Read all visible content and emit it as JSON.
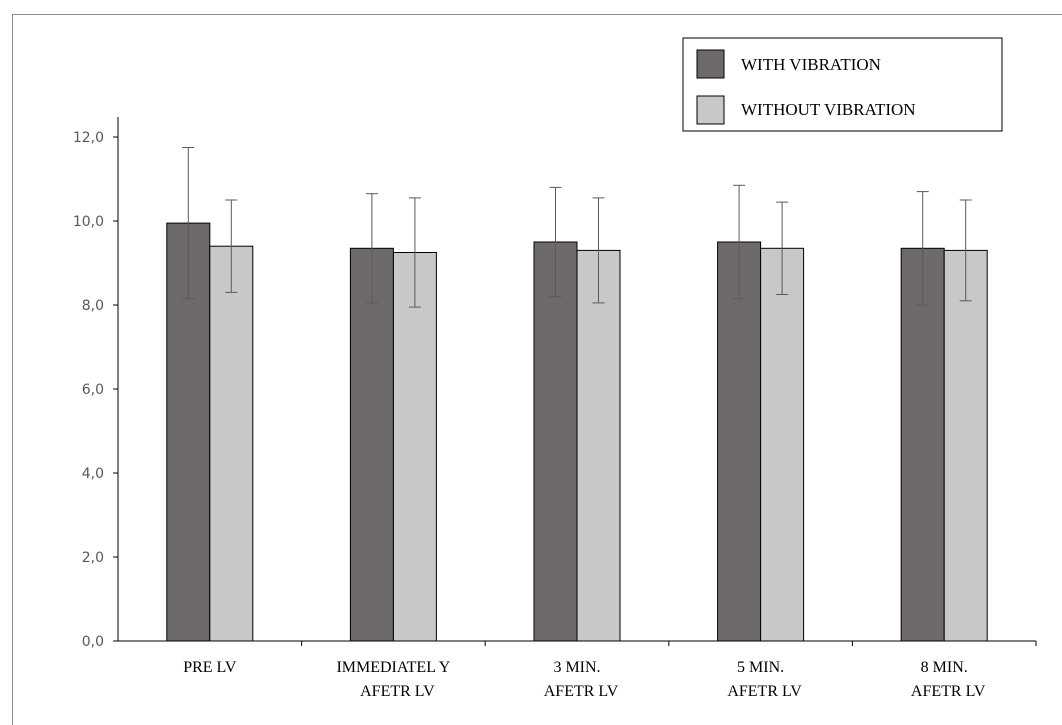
{
  "chart_data": {
    "type": "bar",
    "categories": [
      [
        "PRE  LV"
      ],
      [
        "IMMEDIATEL Y",
        "AFETR LV"
      ],
      [
        "3 MIN.",
        "AFETR LV"
      ],
      [
        "5 MIN.",
        "AFETR LV"
      ],
      [
        "8 MIN.",
        "AFETR LV"
      ]
    ],
    "series": [
      {
        "name": "WITH VIBRATION",
        "color": "#6e6a6a",
        "values": [
          9.95,
          9.35,
          9.5,
          9.5,
          9.35
        ],
        "error": [
          1.8,
          1.3,
          1.3,
          1.35,
          1.35
        ]
      },
      {
        "name": "WITHOUT  VIBRATION",
        "color": "#c8c8c8",
        "values": [
          9.4,
          9.25,
          9.3,
          9.35,
          9.3
        ],
        "error": [
          1.1,
          1.3,
          1.25,
          1.1,
          1.2
        ]
      }
    ],
    "yticks": [
      "0,0",
      "2,0",
      "4,0",
      "6,0",
      "8,0",
      "10,0",
      "12,0"
    ],
    "ylim": [
      0,
      12
    ],
    "grid": false,
    "legend_position": "top-right",
    "xlabel": "",
    "ylabel": "",
    "title": ""
  }
}
